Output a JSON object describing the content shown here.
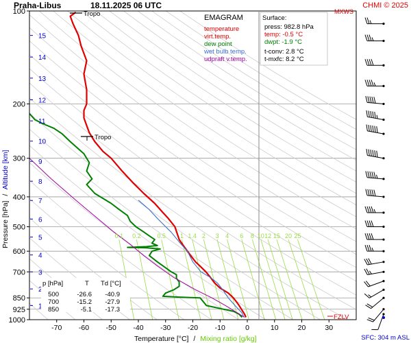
{
  "header": {
    "station": "Praha-Libus",
    "datetime": "18.11.2025 06 UTC",
    "copyright": "CHMI © 2025",
    "mxws_label": "MXWS"
  },
  "legend": {
    "title": "EMAGRAM",
    "items": [
      {
        "label": "temperature",
        "color": "#e00000"
      },
      {
        "label": "virt.temp.",
        "color": "#e00000"
      },
      {
        "label": "dew point",
        "color": "#008000"
      },
      {
        "label": "wet bulb temp.",
        "color": "#3a6fd0"
      },
      {
        "label": "udpraft v.temp.",
        "color": "#a000a0"
      }
    ]
  },
  "surface": {
    "title": "Surface:",
    "press": "press: 982.8 hPa",
    "temp": "temp: -0.5 °C",
    "dwpt": "dwpt: -1.9 °C",
    "tconv": "t-conv: 2.8 °C",
    "tmxfc": "t-mxfc: 8.2 °C"
  },
  "levels_table": {
    "headers": [
      "p [hPa]",
      "T",
      "Td [°C]"
    ],
    "rows": [
      [
        "500",
        "-26.6",
        "-40.9"
      ],
      [
        "700",
        "-15.2",
        "-27.9"
      ],
      [
        "850",
        "-5.1",
        "-17.3"
      ]
    ]
  },
  "annotations": {
    "tropo_upper": "Tropo",
    "tropo_lower": "Tropo",
    "fzlv": "FZLV",
    "sfc": "SFC: 304 m ASL"
  },
  "colors": {
    "temperature": "#e00000",
    "dewpoint": "#008000",
    "wetbulb": "#3a6fd0",
    "parcel": "#a000a0",
    "mixing": "#99dd44",
    "dry_adiabat": "#cccccc",
    "altitude": "#0000cc",
    "wind": "#000000"
  },
  "chart_data": {
    "type": "line",
    "title": "EMAGRAM",
    "xlabel": "Temperature [°C]",
    "xlabel_sep": "/",
    "xlabel2": "Mixing ratio [g/kg]",
    "ylabel": "Pressure [hPa]",
    "ylabel_sep": "/",
    "ylabel2": "Altitude [km]",
    "xlim": [
      -80,
      40
    ],
    "ylim": [
      1000,
      100
    ],
    "y_scale": "log",
    "x_ticks": [
      -70,
      -60,
      -50,
      -40,
      -30,
      -20,
      -10,
      0,
      10,
      20,
      30
    ],
    "pressure_ticks": [
      100,
      200,
      300,
      400,
      500,
      600,
      700,
      850,
      925,
      1000
    ],
    "altitude_ticks": [
      {
        "km": 1,
        "p": 900
      },
      {
        "km": 2,
        "p": 795
      },
      {
        "km": 3,
        "p": 700
      },
      {
        "km": 4,
        "p": 617
      },
      {
        "km": 5,
        "p": 540
      },
      {
        "km": 6,
        "p": 472
      },
      {
        "km": 7,
        "p": 411
      },
      {
        "km": 8,
        "p": 356
      },
      {
        "km": 9,
        "p": 307
      },
      {
        "km": 10,
        "p": 264
      },
      {
        "km": 11,
        "p": 227
      },
      {
        "km": 12,
        "p": 194
      },
      {
        "km": 13,
        "p": 165
      },
      {
        "km": 14,
        "p": 141
      },
      {
        "km": 15,
        "p": 120
      }
    ],
    "mixing_ratio_labels": [
      "0.1",
      "0.2",
      "0.5",
      "1",
      "1.4",
      "2",
      "3",
      "4",
      "6",
      "8",
      "10",
      "12",
      "15",
      "20",
      "25"
    ],
    "series": [
      {
        "name": "temperature",
        "points": [
          [
            -0.5,
            982
          ],
          [
            -1,
            960
          ],
          [
            -2,
            930
          ],
          [
            -3,
            900
          ],
          [
            -4,
            875
          ],
          [
            -5.1,
            850
          ],
          [
            -7,
            820
          ],
          [
            -10,
            790
          ],
          [
            -12,
            760
          ],
          [
            -13.5,
            730
          ],
          [
            -15.2,
            700
          ],
          [
            -17,
            675
          ],
          [
            -19,
            650
          ],
          [
            -20.5,
            625
          ],
          [
            -22,
            600
          ],
          [
            -23.5,
            575
          ],
          [
            -25,
            550
          ],
          [
            -26.6,
            500
          ],
          [
            -29,
            470
          ],
          [
            -31,
            450
          ],
          [
            -34,
            420
          ],
          [
            -38,
            390
          ],
          [
            -42,
            360
          ],
          [
            -46,
            330
          ],
          [
            -50,
            300
          ],
          [
            -53,
            285
          ],
          [
            -56,
            265
          ],
          [
            -58,
            248
          ],
          [
            -59,
            235
          ],
          [
            -60,
            222
          ],
          [
            -60,
            210
          ],
          [
            -59,
            200
          ],
          [
            -59,
            180
          ],
          [
            -60,
            160
          ],
          [
            -59,
            145
          ],
          [
            -61,
            130
          ],
          [
            -62,
            120
          ],
          [
            -64,
            110
          ],
          [
            -65,
            104
          ],
          [
            -63,
            101
          ]
        ]
      },
      {
        "name": "dew point",
        "points": [
          [
            -1.9,
            982
          ],
          [
            -3,
            960
          ],
          [
            -5,
            940
          ],
          [
            -10,
            920
          ],
          [
            -15,
            900
          ],
          [
            -17.3,
            850
          ],
          [
            -25,
            845
          ],
          [
            -31,
            840
          ],
          [
            -30,
            820
          ],
          [
            -27,
            800
          ],
          [
            -25,
            780
          ],
          [
            -25,
            755
          ],
          [
            -26,
            735
          ],
          [
            -26,
            715
          ],
          [
            -27.9,
            700
          ],
          [
            -33,
            650
          ],
          [
            -36,
            620
          ],
          [
            -35,
            600
          ],
          [
            -32,
            590
          ],
          [
            -37,
            585
          ],
          [
            -44,
            583
          ],
          [
            -37,
            580
          ],
          [
            -33,
            575
          ],
          [
            -35,
            565
          ],
          [
            -34,
            550
          ],
          [
            -36,
            535
          ],
          [
            -38,
            520
          ],
          [
            -40.9,
            500
          ],
          [
            -43,
            480
          ],
          [
            -44,
            460
          ],
          [
            -47,
            440
          ],
          [
            -50,
            420
          ],
          [
            -56,
            390
          ],
          [
            -59,
            365
          ],
          [
            -57,
            350
          ],
          [
            -59,
            330
          ],
          [
            -58,
            310
          ],
          [
            -60,
            290
          ],
          [
            -65,
            265
          ],
          [
            -68,
            250
          ],
          [
            -71,
            240
          ],
          [
            -75,
            232
          ],
          [
            -78,
            225
          ],
          [
            -80,
            215
          ]
        ]
      },
      {
        "name": "wet bulb temp.",
        "points": [
          [
            -1.2,
            982
          ],
          [
            -2,
            950
          ],
          [
            -4.5,
            900
          ],
          [
            -7,
            850
          ],
          [
            -9,
            800
          ],
          [
            -11,
            760
          ],
          [
            -13.5,
            730
          ],
          [
            -17,
            700
          ],
          [
            -20,
            650
          ],
          [
            -22,
            600
          ],
          [
            -25,
            560
          ],
          [
            -28,
            520
          ],
          [
            -30,
            500
          ],
          [
            -33,
            470
          ],
          [
            -36,
            440
          ],
          [
            -40,
            410
          ]
        ]
      },
      {
        "name": "udpraft v.temp.",
        "points": [
          [
            -1,
            982
          ],
          [
            -8,
            900
          ],
          [
            -13,
            850
          ],
          [
            -19,
            800
          ],
          [
            -27,
            730
          ],
          [
            -33,
            670
          ],
          [
            -38,
            620
          ],
          [
            -43,
            570
          ],
          [
            -49,
            520
          ],
          [
            -55,
            470
          ],
          [
            -63,
            410
          ],
          [
            -72,
            350
          ],
          [
            -80,
            300
          ]
        ]
      }
    ],
    "wind_barbs": [
      {
        "p": 960,
        "dir": 200,
        "kt": 10
      },
      {
        "p": 925,
        "dir": 220,
        "kt": 20
      },
      {
        "p": 850,
        "dir": 230,
        "kt": 20
      },
      {
        "p": 800,
        "dir": 240,
        "kt": 15
      },
      {
        "p": 750,
        "dir": 250,
        "kt": 20
      },
      {
        "p": 700,
        "dir": 260,
        "kt": 25
      },
      {
        "p": 650,
        "dir": 260,
        "kt": 30
      },
      {
        "p": 600,
        "dir": 270,
        "kt": 35
      },
      {
        "p": 550,
        "dir": 270,
        "kt": 40
      },
      {
        "p": 500,
        "dir": 270,
        "kt": 40
      },
      {
        "p": 450,
        "dir": 270,
        "kt": 45
      },
      {
        "p": 400,
        "dir": 275,
        "kt": 50
      },
      {
        "p": 350,
        "dir": 275,
        "kt": 55
      },
      {
        "p": 300,
        "dir": 280,
        "kt": 60
      },
      {
        "p": 250,
        "dir": 280,
        "kt": 60
      },
      {
        "p": 225,
        "dir": 280,
        "kt": 55
      },
      {
        "p": 200,
        "dir": 275,
        "kt": 50
      },
      {
        "p": 175,
        "dir": 270,
        "kt": 45
      },
      {
        "p": 150,
        "dir": 270,
        "kt": 40
      },
      {
        "p": 125,
        "dir": 270,
        "kt": 35
      },
      {
        "p": 110,
        "dir": 270,
        "kt": 25
      }
    ]
  }
}
